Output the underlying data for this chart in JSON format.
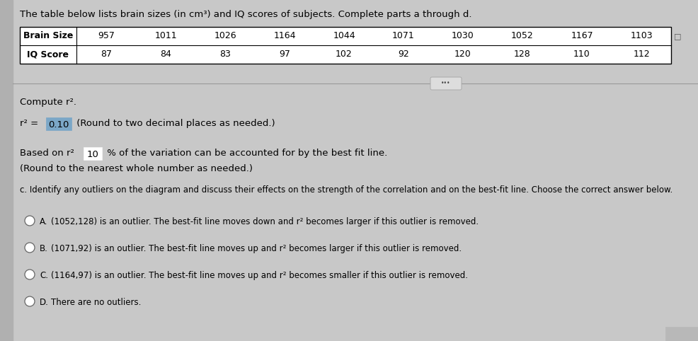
{
  "title": "The table below lists brain sizes (in cm³) and IQ scores of subjects. Complete parts a through d.",
  "brain_sizes": [
    "957",
    "1011",
    "1026",
    "1164",
    "1044",
    "1071",
    "1030",
    "1052",
    "1167",
    "1103"
  ],
  "iq_scores": [
    "87",
    "84",
    "83",
    "97",
    "102",
    "92",
    "120",
    "128",
    "110",
    "112"
  ],
  "compute_label": "Compute r².",
  "r2_value": "0.10",
  "r2_suffix": " (Round to two decimal places as needed.)",
  "based_on_prefix": "Based on r² ",
  "based_on_value": "10",
  "based_on_suffix": " % of the variation can be accounted for by the best fit line.",
  "based_on_line2": "(Round to the nearest whole number as needed.)",
  "part_c": "c. Identify any outliers on the diagram and discuss their effects on the strength of the correlation and on the best-fit line. Choose the correct answer below.",
  "option_A": "(1052,128) is an outlier. The best-fit line moves down and r² becomes larger if this outlier is removed.",
  "option_B": "(1071,92) is an outlier. The best-fit line moves up and r² becomes larger if this outlier is removed.",
  "option_C": "(1164,97) is an outlier. The best-fit line moves up and r² becomes smaller if this outlier is removed.",
  "option_D": "There are no outliers.",
  "bg_color": "#c8c8c8",
  "table_bg": "white",
  "highlight_0_10": "#7ba7c7",
  "highlight_10": "#9ab5cc"
}
